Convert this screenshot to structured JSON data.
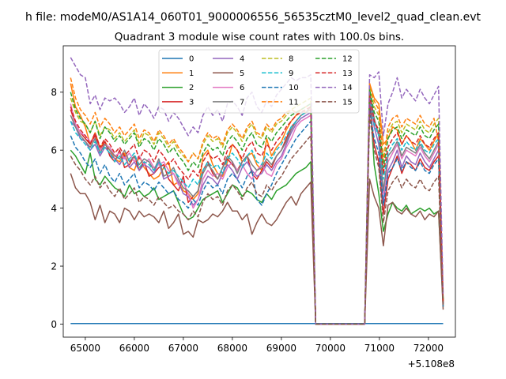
{
  "page_title": "h file: modeM0/AS1A14_060T01_9000006556_56535cztM0_level2_quad_clean.evt",
  "chart_data": {
    "type": "line",
    "title": "Quadrant 3 module wise count rates with 100.0s bins.",
    "suptitle": "h file: modeM0/AS1A14_060T01_9000006556_56535cztM0_level2_quad_clean.evt",
    "xlabel": "",
    "ylabel": "",
    "x_offset_label": "+5.108e8",
    "xlim": [
      64550,
      72550
    ],
    "ylim": [
      -0.45,
      9.6
    ],
    "xticks": [
      65000,
      66000,
      67000,
      68000,
      69000,
      70000,
      71000,
      72000
    ],
    "yticks": [
      0,
      2,
      4,
      6,
      8
    ],
    "x_start": 64700,
    "x_step": 100,
    "gap_start": 69700,
    "gap_end": 70700,
    "x_end": 72300,
    "legend": {
      "location": "top-center",
      "ncol": 4
    },
    "series": [
      {
        "name": "0",
        "color": "#1f77b4",
        "dash": "solid",
        "pre": [
          0.02
        ],
        "post": [
          0.02
        ],
        "end": 0.02
      },
      {
        "name": "1",
        "color": "#ff7f0e",
        "dash": "solid",
        "pre": [
          8.3,
          7.5,
          7.2,
          6.8,
          6.2,
          6.6,
          6.1,
          6.3,
          6.0,
          5.7,
          5.6,
          5.9,
          5.4,
          5.3,
          5.8,
          5.4,
          5.2,
          5.0,
          5.1,
          5.4,
          5.6,
          4.8,
          4.9,
          4.6,
          4.5,
          4.3,
          4.5,
          5.8,
          6.0,
          5.5,
          5.2,
          5.1,
          5.6,
          6.2,
          6.0,
          5.6,
          5.8,
          5.9,
          5.5,
          5.3,
          6.4,
          5.8,
          6.1,
          6.3,
          6.7,
          7.0,
          7.2,
          7.4,
          7.5,
          7.6
        ],
        "post": [
          8.3,
          7.8,
          7.6,
          6.2,
          6.4,
          6.8,
          6.7,
          6.2,
          6.5,
          6.3,
          6.0,
          6.4,
          6.2,
          6.0,
          6.3,
          6.6
        ],
        "end": 0.8
      },
      {
        "name": "2",
        "color": "#2ca02c",
        "dash": "solid",
        "pre": [
          6.0,
          5.8,
          5.5,
          5.2,
          5.9,
          5.0,
          4.8,
          5.1,
          4.9,
          4.7,
          4.6,
          4.4,
          4.8,
          4.5,
          4.6,
          4.4,
          4.5,
          4.7,
          4.3,
          4.4,
          4.5,
          4.6,
          4.2,
          3.8,
          3.6,
          3.7,
          4.0,
          4.3,
          4.4,
          4.5,
          4.6,
          4.2,
          4.5,
          4.8,
          4.7,
          4.4,
          4.6,
          4.5,
          4.3,
          4.2,
          4.5,
          4.3,
          4.6,
          4.7,
          4.8,
          5.0,
          5.2,
          5.3,
          5.4,
          5.6
        ],
        "post": [
          8.0,
          5.5,
          4.5,
          3.2,
          3.8,
          4.2,
          4.0,
          3.9,
          4.1,
          3.8,
          3.9,
          4.0,
          3.9,
          4.0,
          3.8,
          3.9
        ],
        "end": 0.6
      },
      {
        "name": "3",
        "color": "#d62728",
        "dash": "solid",
        "pre": [
          7.4,
          6.9,
          6.6,
          6.4,
          6.2,
          6.5,
          6.0,
          6.3,
          5.8,
          5.6,
          6.0,
          5.4,
          5.5,
          5.8,
          5.3,
          5.6,
          5.1,
          5.2,
          5.4,
          5.5,
          5.0,
          4.8,
          4.6,
          5.1,
          4.2,
          4.4,
          4.6,
          5.3,
          5.6,
          5.2,
          5.0,
          5.4,
          5.7,
          5.5,
          5.3,
          5.6,
          5.8,
          5.2,
          5.0,
          5.3,
          5.6,
          5.4,
          5.8,
          6.0,
          6.4,
          6.8,
          7.0,
          7.2,
          7.3,
          7.4
        ],
        "post": [
          7.6,
          6.2,
          5.6,
          3.8,
          5.0,
          5.4,
          5.8,
          5.2,
          5.6,
          5.5,
          5.3,
          5.7,
          5.4,
          5.3,
          5.6,
          5.8
        ],
        "end": 0.7
      },
      {
        "name": "4",
        "color": "#9467bd",
        "dash": "solid",
        "pre": [
          7.0,
          6.8,
          6.4,
          6.3,
          6.0,
          6.2,
          5.8,
          6.1,
          5.9,
          5.7,
          5.5,
          5.8,
          5.4,
          5.6,
          5.3,
          5.5,
          5.4,
          5.2,
          5.6,
          5.0,
          5.1,
          5.2,
          4.9,
          4.5,
          4.4,
          4.1,
          4.3,
          4.8,
          5.1,
          5.0,
          4.8,
          5.2,
          5.5,
          5.3,
          5.0,
          5.4,
          5.6,
          5.3,
          5.1,
          5.2,
          5.5,
          5.3,
          5.6,
          5.8,
          6.2,
          6.6,
          6.9,
          7.1,
          7.2,
          7.3
        ],
        "post": [
          7.8,
          6.8,
          6.2,
          4.2,
          5.3,
          5.6,
          6.0,
          5.4,
          5.8,
          5.6,
          5.5,
          5.9,
          5.6,
          5.4,
          5.7,
          6.0
        ],
        "end": 0.7
      },
      {
        "name": "5",
        "color": "#8c564b",
        "dash": "solid",
        "pre": [
          5.2,
          4.7,
          4.5,
          4.5,
          4.2,
          3.6,
          4.1,
          3.5,
          3.9,
          3.8,
          3.5,
          4.0,
          3.9,
          3.6,
          3.9,
          3.7,
          3.8,
          3.7,
          3.5,
          3.9,
          3.3,
          3.5,
          3.8,
          3.1,
          3.2,
          3.0,
          3.6,
          3.5,
          3.6,
          3.8,
          3.7,
          3.9,
          4.2,
          3.9,
          3.9,
          3.6,
          3.8,
          3.1,
          3.5,
          3.8,
          3.5,
          3.4,
          3.6,
          3.9,
          4.2,
          4.4,
          4.1,
          4.5,
          4.7,
          4.9
        ],
        "post": [
          5.0,
          4.4,
          4.0,
          2.7,
          4.1,
          4.2,
          3.9,
          3.8,
          4.0,
          3.8,
          3.7,
          3.9,
          3.6,
          3.8,
          3.7,
          3.9
        ],
        "end": 0.5
      },
      {
        "name": "6",
        "color": "#e377c2",
        "dash": "solid",
        "pre": [
          7.6,
          6.9,
          6.6,
          6.5,
          6.3,
          6.4,
          6.0,
          6.2,
          6.1,
          5.8,
          5.9,
          5.7,
          5.9,
          5.6,
          5.8,
          5.5,
          5.7,
          5.4,
          5.5,
          5.6,
          5.3,
          5.2,
          4.8,
          4.9,
          4.5,
          4.0,
          4.3,
          5.0,
          5.3,
          5.1,
          5.2,
          5.0,
          5.4,
          5.6,
          5.3,
          5.5,
          5.2,
          5.0,
          5.3,
          5.5,
          5.2,
          5.1,
          5.5,
          5.7,
          6.1,
          6.4,
          6.8,
          7.0,
          7.1,
          7.2
        ],
        "post": [
          7.9,
          7.0,
          6.5,
          4.5,
          5.6,
          5.9,
          6.2,
          5.7,
          6.0,
          5.9,
          5.8,
          6.1,
          5.8,
          5.6,
          5.9,
          6.2
        ],
        "end": 0.7
      },
      {
        "name": "7",
        "color": "#7f7f7f",
        "dash": "solid",
        "pre": [
          7.2,
          6.8,
          6.5,
          6.3,
          6.1,
          6.4,
          5.9,
          6.2,
          6.0,
          5.8,
          5.7,
          6.0,
          5.6,
          5.8,
          5.5,
          5.7,
          5.6,
          5.3,
          5.7,
          5.1,
          5.2,
          5.4,
          5.0,
          4.7,
          4.6,
          4.4,
          4.6,
          5.2,
          5.5,
          5.3,
          5.0,
          5.4,
          5.8,
          5.6,
          5.2,
          5.6,
          5.8,
          5.5,
          5.3,
          5.4,
          5.7,
          5.5,
          5.8,
          6.0,
          6.3,
          6.7,
          7.0,
          7.2,
          7.3,
          7.5
        ],
        "post": [
          8.0,
          7.1,
          6.5,
          4.6,
          5.8,
          6.0,
          6.3,
          5.8,
          6.1,
          6.0,
          5.9,
          6.2,
          5.9,
          5.7,
          6.0,
          6.3
        ],
        "end": 0.7
      },
      {
        "name": "8",
        "color": "#bcbd22",
        "dash": "dashed",
        "pre": [
          7.8,
          7.3,
          7.0,
          6.9,
          6.6,
          7.0,
          6.5,
          6.8,
          6.7,
          6.4,
          6.6,
          6.3,
          6.5,
          6.7,
          6.2,
          6.6,
          6.5,
          6.2,
          6.6,
          6.4,
          6.1,
          6.3,
          6.0,
          5.8,
          5.6,
          5.9,
          5.7,
          6.2,
          6.5,
          6.3,
          6.4,
          6.1,
          6.6,
          6.8,
          6.6,
          6.3,
          6.7,
          6.9,
          6.5,
          6.4,
          6.8,
          6.6,
          6.9,
          7.0,
          7.2,
          7.4,
          7.5,
          7.6,
          7.7,
          7.8
        ],
        "post": [
          8.2,
          7.5,
          7.2,
          5.8,
          6.6,
          6.9,
          7.0,
          6.6,
          6.9,
          6.8,
          6.7,
          7.0,
          6.7,
          6.6,
          6.9,
          7.1
        ],
        "end": 0.8
      },
      {
        "name": "9",
        "color": "#17becf",
        "dash": "dashed",
        "pre": [
          7.0,
          6.6,
          6.4,
          6.2,
          6.0,
          6.3,
          5.9,
          6.1,
          5.9,
          5.6,
          5.8,
          5.5,
          5.7,
          5.9,
          5.4,
          5.6,
          5.5,
          5.3,
          5.6,
          5.4,
          5.2,
          5.3,
          5.1,
          4.9,
          4.7,
          5.0,
          4.8,
          5.3,
          5.6,
          5.4,
          5.5,
          5.2,
          5.7,
          5.9,
          5.7,
          5.4,
          5.8,
          6.0,
          5.6,
          5.5,
          5.9,
          5.7,
          6.0,
          6.2,
          6.5,
          6.8,
          7.0,
          7.2,
          7.3,
          7.4
        ],
        "post": [
          7.9,
          6.9,
          6.5,
          5.0,
          5.9,
          6.2,
          6.4,
          6.0,
          6.3,
          6.1,
          6.0,
          6.3,
          6.0,
          5.9,
          6.2,
          6.4
        ],
        "end": 0.7
      },
      {
        "name": "10",
        "color": "#1f77b4",
        "dash": "dashed",
        "pre": [
          6.5,
          6.1,
          5.9,
          5.6,
          5.4,
          5.7,
          5.2,
          5.5,
          5.1,
          4.9,
          5.2,
          4.8,
          5.0,
          5.2,
          4.7,
          4.9,
          4.8,
          4.6,
          4.9,
          4.7,
          4.5,
          4.6,
          4.3,
          4.2,
          4.0,
          4.3,
          4.1,
          4.6,
          4.9,
          4.7,
          4.8,
          4.5,
          5.0,
          5.2,
          5.0,
          4.7,
          5.1,
          5.3,
          4.3,
          4.1,
          4.5,
          4.8,
          5.2,
          5.5,
          5.8,
          6.1,
          6.4,
          6.6,
          6.8,
          7.0
        ],
        "post": [
          7.4,
          6.4,
          5.9,
          4.1,
          5.2,
          5.4,
          5.7,
          5.3,
          5.6,
          5.4,
          5.3,
          5.6,
          5.3,
          5.2,
          5.5,
          5.7
        ],
        "end": 0.6
      },
      {
        "name": "11",
        "color": "#ff7f0e",
        "dash": "dashed",
        "pre": [
          8.5,
          7.8,
          7.4,
          7.2,
          6.9,
          7.3,
          6.8,
          7.1,
          6.9,
          6.6,
          6.8,
          6.5,
          6.7,
          6.9,
          6.4,
          6.7,
          6.6,
          6.3,
          6.7,
          6.5,
          6.2,
          6.4,
          6.1,
          5.9,
          5.6,
          5.9,
          5.7,
          6.3,
          6.6,
          6.4,
          6.5,
          6.2,
          6.7,
          6.9,
          6.7,
          6.4,
          6.8,
          7.0,
          6.6,
          6.5,
          6.9,
          6.7,
          7.0,
          7.1,
          7.3,
          7.4,
          7.3,
          7.4,
          7.3,
          7.4
        ],
        "post": [
          8.3,
          7.7,
          7.4,
          5.6,
          6.8,
          7.1,
          7.2,
          6.8,
          7.1,
          7.0,
          6.9,
          7.2,
          6.9,
          6.8,
          7.1,
          6.3
        ],
        "end": 0.8
      },
      {
        "name": "12",
        "color": "#2ca02c",
        "dash": "dashed",
        "pre": [
          8.0,
          7.4,
          7.1,
          6.9,
          6.6,
          7.0,
          6.4,
          6.8,
          6.6,
          6.3,
          6.5,
          6.2,
          6.4,
          6.6,
          6.1,
          6.4,
          6.3,
          6.0,
          6.4,
          6.2,
          5.9,
          6.1,
          5.8,
          5.6,
          5.3,
          5.6,
          5.4,
          5.9,
          6.2,
          6.0,
          6.1,
          5.8,
          6.3,
          6.5,
          6.3,
          6.0,
          6.4,
          6.6,
          6.2,
          6.1,
          6.5,
          6.3,
          6.6,
          6.8,
          7.0,
          7.2,
          7.3,
          7.4,
          7.5,
          7.6
        ],
        "post": [
          8.1,
          7.3,
          7.0,
          5.4,
          6.4,
          6.7,
          6.8,
          6.4,
          6.7,
          6.6,
          6.5,
          6.8,
          6.5,
          6.4,
          6.7,
          6.9
        ],
        "end": 0.8
      },
      {
        "name": "13",
        "color": "#d62728",
        "dash": "dashed",
        "pre": [
          7.5,
          7.0,
          6.7,
          6.5,
          6.2,
          6.6,
          6.1,
          6.4,
          6.2,
          5.9,
          6.1,
          5.8,
          6.0,
          6.2,
          5.7,
          6.0,
          5.9,
          5.6,
          6.0,
          5.8,
          5.5,
          5.7,
          5.4,
          5.2,
          5.0,
          5.3,
          5.1,
          5.6,
          5.9,
          5.7,
          5.8,
          5.5,
          6.0,
          6.2,
          6.0,
          5.7,
          6.1,
          6.3,
          5.9,
          5.8,
          6.2,
          6.0,
          6.3,
          6.5,
          6.8,
          7.0,
          7.2,
          7.3,
          7.4,
          7.5
        ],
        "post": [
          7.9,
          7.0,
          6.7,
          5.2,
          6.1,
          6.4,
          6.6,
          6.2,
          6.5,
          6.3,
          6.2,
          6.5,
          6.2,
          6.1,
          6.4,
          6.6
        ],
        "end": 0.7
      },
      {
        "name": "14",
        "color": "#9467bd",
        "dash": "dashed",
        "pre": [
          9.2,
          8.9,
          8.6,
          8.5,
          7.6,
          7.9,
          7.4,
          7.8,
          7.7,
          7.8,
          7.6,
          7.3,
          7.5,
          7.8,
          7.2,
          7.6,
          7.4,
          7.1,
          7.5,
          7.4,
          7.0,
          7.3,
          7.1,
          6.8,
          6.5,
          6.8,
          6.6,
          7.2,
          7.5,
          7.2,
          7.4,
          7.0,
          7.6,
          7.7,
          7.5,
          7.2,
          7.8,
          8.0,
          7.5,
          7.3,
          7.7,
          7.5,
          7.9,
          8.1,
          8.3,
          8.5,
          8.4,
          8.5,
          8.5,
          8.6
        ],
        "post": [
          8.6,
          8.5,
          8.7,
          6.5,
          7.6,
          8.0,
          8.5,
          7.8,
          8.1,
          7.9,
          7.7,
          8.1,
          7.8,
          7.6,
          7.9,
          8.2
        ],
        "end": 1.0
      },
      {
        "name": "15",
        "color": "#8c564b",
        "dash": "dashed",
        "pre": [
          5.8,
          5.5,
          5.3,
          5.0,
          4.8,
          5.1,
          4.7,
          4.9,
          4.6,
          4.4,
          4.7,
          4.3,
          4.5,
          4.7,
          4.2,
          4.4,
          4.3,
          4.1,
          4.4,
          4.2,
          4.0,
          4.1,
          3.9,
          3.8,
          3.6,
          3.9,
          3.7,
          4.2,
          4.5,
          4.3,
          4.4,
          4.1,
          4.6,
          4.8,
          4.6,
          4.3,
          4.7,
          4.9,
          4.5,
          4.4,
          4.8,
          4.6,
          4.9,
          5.1,
          5.4,
          5.7,
          5.9,
          6.1,
          6.3,
          6.5
        ],
        "post": [
          7.2,
          6.0,
          5.4,
          3.5,
          4.6,
          4.9,
          5.1,
          4.7,
          5.0,
          4.8,
          4.7,
          5.0,
          4.7,
          4.6,
          4.9,
          5.1
        ],
        "end": 0.6
      }
    ]
  }
}
